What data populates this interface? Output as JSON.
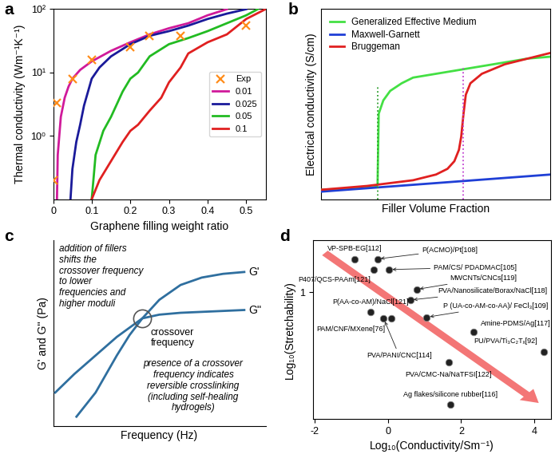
{
  "chart_data": [
    {
      "type": "line",
      "title": "a",
      "x_label": "Graphene filling weight ratio",
      "y_label": "Thermal conductivity (Wm⁻¹K⁻¹)",
      "log": "y",
      "xlim": [
        0,
        0.55
      ],
      "ylim": [
        0.1,
        100
      ],
      "xticks": [
        0,
        0.1,
        0.2,
        0.3,
        0.4,
        0.5
      ],
      "yticks": [
        {
          "value": 1,
          "label": "10⁰"
        },
        {
          "value": 10,
          "label": "10¹"
        },
        {
          "value": 100,
          "label": "10²"
        }
      ],
      "legend": "center right",
      "series": [
        {
          "name": "Exp",
          "type": "scatter",
          "marker": "x",
          "color": "#ff8c1a",
          "x": [
            0.0,
            0.01,
            0.05,
            0.1,
            0.2,
            0.25,
            0.33,
            0.5
          ],
          "values": [
            0.2,
            3.3,
            8,
            16,
            25,
            38,
            38,
            55
          ]
        },
        {
          "name": "0.01",
          "color": "#d01a9a",
          "x": [
            0.01,
            0.012,
            0.02,
            0.03,
            0.04,
            0.05,
            0.07,
            0.1,
            0.15,
            0.2,
            0.25,
            0.3,
            0.35,
            0.4,
            0.45
          ],
          "values": [
            0.1,
            0.5,
            2,
            4,
            6,
            8,
            11,
            15,
            22,
            30,
            40,
            50,
            60,
            80,
            100
          ]
        },
        {
          "name": "0.025",
          "color": "#1a1a9a",
          "x": [
            0.045,
            0.05,
            0.06,
            0.07,
            0.08,
            0.1,
            0.12,
            0.15,
            0.2,
            0.25,
            0.3,
            0.35,
            0.4,
            0.45,
            0.5
          ],
          "values": [
            0.1,
            0.3,
            0.8,
            1.5,
            3,
            8,
            12,
            18,
            28,
            38,
            45,
            55,
            70,
            85,
            100
          ]
        },
        {
          "name": "0.05",
          "color": "#22bb22",
          "x": [
            0.1,
            0.11,
            0.13,
            0.15,
            0.18,
            0.2,
            0.22,
            0.25,
            0.3,
            0.35,
            0.4,
            0.45,
            0.5,
            0.53
          ],
          "values": [
            0.1,
            0.5,
            1.2,
            2,
            5,
            8,
            10,
            18,
            28,
            35,
            45,
            60,
            80,
            100
          ]
        },
        {
          "name": "0.1",
          "color": "#e02020",
          "x": [
            0.1,
            0.12,
            0.15,
            0.18,
            0.2,
            0.22,
            0.25,
            0.28,
            0.3,
            0.33,
            0.35,
            0.4,
            0.45,
            0.5,
            0.55
          ],
          "values": [
            0.1,
            0.2,
            0.4,
            0.8,
            1.2,
            1.5,
            2.5,
            4,
            7,
            12,
            20,
            30,
            40,
            70,
            100
          ]
        }
      ]
    },
    {
      "type": "line",
      "title": "b",
      "x_label": "Filler Volume Fraction",
      "y_label": "Electrical conductivity (S/cm)",
      "xlim": [
        0,
        1
      ],
      "ylim": [
        0,
        1
      ],
      "xticks": [],
      "yticks": [],
      "tick_labels": false,
      "legend": "upper left",
      "series": [
        {
          "name": "Generalized Effective Medium",
          "color": "#44e044",
          "x": [
            0,
            0.1,
            0.2,
            0.24,
            0.245,
            0.25,
            0.27,
            0.3,
            0.35,
            0.4,
            0.5,
            0.6,
            0.7,
            0.8,
            0.9,
            1.0
          ],
          "values": [
            0.05,
            0.055,
            0.06,
            0.065,
            0.08,
            0.45,
            0.52,
            0.57,
            0.61,
            0.64,
            0.66,
            0.68,
            0.7,
            0.72,
            0.74,
            0.75
          ]
        },
        {
          "name": "Maxwell-Garnett",
          "color": "#1f3fd6",
          "x": [
            0,
            1.0
          ],
          "values": [
            0.04,
            0.13
          ]
        },
        {
          "name": "Bruggeman",
          "color": "#e02020",
          "x": [
            0,
            0.2,
            0.4,
            0.5,
            0.55,
            0.58,
            0.6,
            0.61,
            0.62,
            0.63,
            0.65,
            0.7,
            0.8,
            0.9,
            1.0
          ],
          "values": [
            0.05,
            0.07,
            0.1,
            0.13,
            0.16,
            0.2,
            0.26,
            0.33,
            0.45,
            0.55,
            0.61,
            0.66,
            0.71,
            0.74,
            0.77
          ]
        },
        {
          "type": "line",
          "line_style": "dotted",
          "color": "#2e9e2e",
          "x": [
            0.245,
            0.245
          ],
          "values": [
            0,
            0.6
          ]
        },
        {
          "type": "line",
          "line_style": "dotted",
          "color": "#c040d0",
          "x": [
            0.62,
            0.62
          ],
          "values": [
            0,
            0.7
          ]
        }
      ]
    },
    {
      "type": "line",
      "title": "c",
      "x_label": "Frequency (Hz)",
      "y_label": "G' and G'' (Pa)",
      "xlim": [
        0,
        1
      ],
      "ylim": [
        0,
        1
      ],
      "xticks": [],
      "yticks": [],
      "tick_labels": false,
      "annotations": [
        "addition of fillers\nshifts the\ncrossover frequency\nto lower\nfrequencies and\nhigher moduli",
        "presence of a crossover\nfrequency indicates\nreversible crosslinking\n(including self-healing\nhydrogels)",
        "crossover\nfrequency"
      ],
      "series": [
        {
          "name": "G'",
          "color": "#2f6f9f",
          "x": [
            0.11,
            0.2,
            0.3,
            0.36,
            0.42,
            0.5,
            0.6,
            0.7,
            0.8,
            0.9
          ],
          "values": [
            0.05,
            0.18,
            0.38,
            0.49,
            0.58,
            0.68,
            0.76,
            0.8,
            0.82,
            0.83
          ]
        },
        {
          "name": "G''",
          "color": "#2f6f9f",
          "x": [
            0.01,
            0.1,
            0.2,
            0.3,
            0.42,
            0.5,
            0.6,
            0.7,
            0.8,
            0.9
          ],
          "values": [
            0.18,
            0.28,
            0.38,
            0.48,
            0.58,
            0.6,
            0.61,
            0.615,
            0.62,
            0.625
          ]
        },
        {
          "type": "scatter",
          "marker": "o",
          "color": "#555555",
          "x": [
            0.42
          ],
          "values": [
            0.58
          ]
        }
      ]
    },
    {
      "type": "scatter",
      "title": "d",
      "x_label": "Log₁₀(Conductivity/Sm⁻¹)",
      "y_label": "Log₁₀(Stretchability)",
      "xlim": [
        -2.05,
        4.45
      ],
      "ylim": [
        0.04,
        1.39
      ],
      "xticks": [
        -2,
        0,
        2,
        4
      ],
      "yticks": [
        1
      ],
      "color": "#222222",
      "x": [
        -0.91,
        -0.29,
        0.03,
        -0.39,
        0.78,
        0.61,
        -0.48,
        1.06,
        0.1,
        -0.12,
        2.35,
        1.66,
        4.27,
        1.7
      ],
      "values": [
        1.25,
        1.25,
        1.17,
        1.17,
        1.02,
        0.94,
        0.85,
        0.81,
        0.8,
        0.8,
        0.7,
        0.47,
        0.55,
        0.15
      ],
      "labels": [
        "VP-SPB-EG[112]",
        "P(ACMO)/Pt[108]",
        "PAM/CS/ PDADMAC[105]",
        "P407/QCS-PAAm[121]",
        "MWCNTs/CNCs[119]",
        "PVA/Nanosilicate/Borax/NaCl[118]",
        "P(AA-co-AM)/NaCl[121]",
        "P (UA-co-AM-co-AA)/ FeCl₃[109]",
        "PAM/CNF/MXene[76]",
        "PVA/PANI/CNC[114]",
        "Amine-PDMS/Ag[117]",
        "PVA/CMC-Na/NaTFSI[122]",
        "PU/PVA/Ti₃C₂Tₓ[92]",
        "Ag flakes/silicone rubber[116]"
      ]
    }
  ]
}
